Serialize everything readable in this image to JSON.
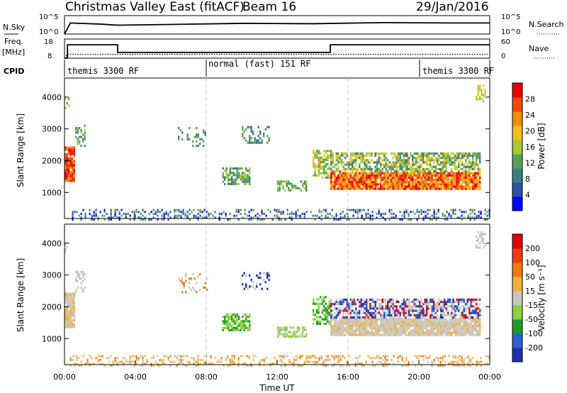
{
  "header": {
    "title": "Christmas Valley East (fitACF)",
    "beam": "Beam 16",
    "date": "29/Jan/2016"
  },
  "strip_labels": {
    "nsky": "N.Sky",
    "nsearch": "N.Search",
    "freq": "Freq.",
    "mhz": "[MHz]",
    "nave": "Nave",
    "cpid": "CPID",
    "nsky_ticks": [
      "10^5",
      "10^0"
    ],
    "nsearch_ticks": [
      "10^5",
      "10^0"
    ],
    "freq_ticks": [
      "18",
      "8"
    ],
    "nave_ticks": [
      "60",
      "0"
    ]
  },
  "cpid_segments": [
    "themis 3300 RF",
    "normal (fast) 151 RF",
    "themis 3300 RF"
  ],
  "colors": {
    "power": [
      "#0000ff",
      "#2e4fa3",
      "#3a7f7f",
      "#5aa05a",
      "#a8c83c",
      "#f0c020",
      "#f08c10",
      "#f04810",
      "#e80000"
    ],
    "velocity": [
      "#2030b0",
      "#2c5fd0",
      "#1f9a2a",
      "#8ad040",
      "#c8c8c0",
      "#f0b040",
      "#f07a10",
      "#f03c10",
      "#e00000"
    ]
  },
  "chart_data": [
    {
      "type": "line",
      "panel": "N.Sky / N.Search",
      "ylim": [
        0,
        5
      ],
      "x": [
        "00:00",
        "00:20",
        "02:00",
        "03:00",
        "06:00",
        "10:00",
        "14:00",
        "18:00",
        "22:00",
        "24:00"
      ],
      "series": [
        {
          "name": "N.Sky",
          "values": [
            0.0,
            3.0,
            2.7,
            2.4,
            2.6,
            2.9,
            2.8,
            3.1,
            3.0,
            3.0
          ]
        },
        {
          "name": "N.Search",
          "values": [
            0.0,
            0.0,
            0.0,
            0.0,
            0.0,
            0.0,
            0.0,
            0.0,
            0.0,
            0.0
          ]
        }
      ]
    },
    {
      "type": "line",
      "panel": "Freq. / Nave",
      "ylim": [
        8,
        18
      ],
      "x": [
        "00:00",
        "00:10",
        "03:00",
        "15:00",
        "24:00"
      ],
      "series": [
        {
          "name": "Freq.",
          "values": [
            8,
            15,
            11,
            15,
            15
          ]
        },
        {
          "name": "Nave",
          "values": [
            0,
            12,
            12,
            12,
            12
          ]
        }
      ]
    },
    {
      "type": "heatmap",
      "panel": "Power",
      "xlabel": "",
      "ylabel": "Slant Range [km]",
      "x_ticks": [
        "00:00",
        "04:00",
        "08:00",
        "12:00",
        "16:00",
        "20:00",
        "00:00"
      ],
      "y_ticks": [
        "1000",
        "2000",
        "3000",
        "4000"
      ],
      "xlim": [
        0,
        24
      ],
      "ylim": [
        180,
        4600
      ],
      "colorbar": {
        "label": "Power [dB]",
        "ticks": [
          "28",
          "24",
          "20",
          "16",
          "12",
          "8",
          "4"
        ]
      }
    },
    {
      "type": "heatmap",
      "panel": "Velocity",
      "xlabel": "Time UT",
      "ylabel": "Slant Range [km]",
      "x_ticks": [
        "00:00",
        "04:00",
        "08:00",
        "12:00",
        "16:00",
        "20:00",
        "00:00"
      ],
      "y_ticks": [
        "1000",
        "2000",
        "3000",
        "4000"
      ],
      "xlim": [
        0,
        24
      ],
      "ylim": [
        180,
        4600
      ],
      "colorbar": {
        "label": "Velocity [m s⁻¹]",
        "ticks": [
          "200",
          "100",
          "50",
          "15",
          "-15",
          "-50",
          "-100",
          "-200"
        ]
      }
    }
  ]
}
